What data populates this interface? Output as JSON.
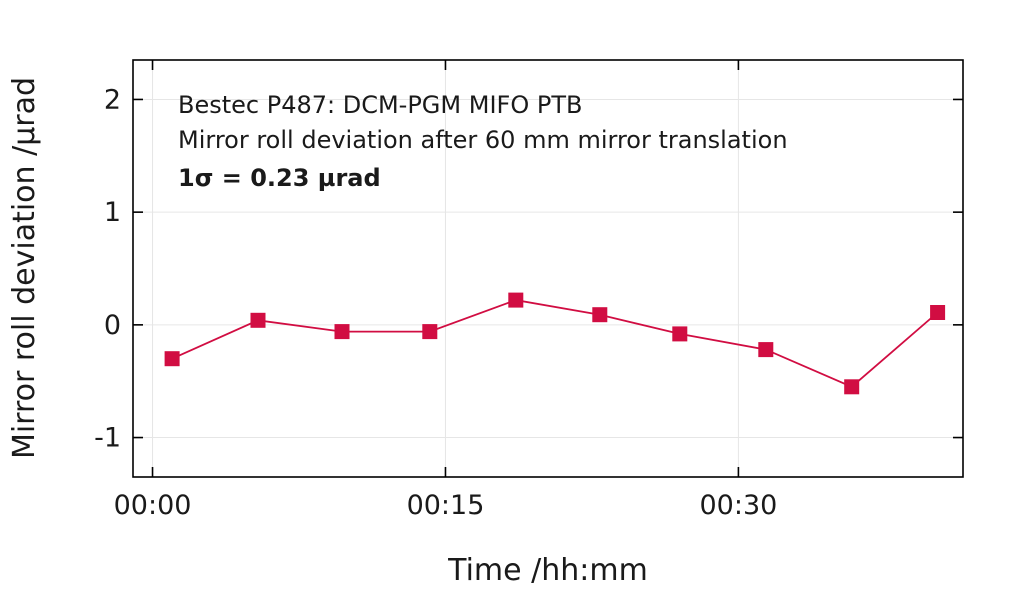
{
  "chart_data": {
    "type": "line",
    "title": "",
    "xlabel": "Time /hh:mm",
    "ylabel": "Mirror roll deviation /µrad",
    "annotations": [
      "Bestec P487: DCM-PGM MIFO PTB",
      "Mirror roll deviation after 60 mm mirror translation",
      "1σ = 0.23 µrad"
    ],
    "x_unit": "minutes",
    "xlim": [
      -1,
      41.5
    ],
    "ylim": [
      -1.35,
      2.35
    ],
    "x_ticks": [
      {
        "value": 0,
        "label": "00:00"
      },
      {
        "value": 15,
        "label": "00:15"
      },
      {
        "value": 30,
        "label": "00:30"
      }
    ],
    "y_ticks": [
      {
        "value": -1,
        "label": "-1"
      },
      {
        "value": 0,
        "label": "0"
      },
      {
        "value": 1,
        "label": "1"
      },
      {
        "value": 2,
        "label": "2"
      }
    ],
    "grid": true,
    "series": [
      {
        "color": "#d10d42",
        "marker": "square",
        "x": [
          1.0,
          5.4,
          9.7,
          14.2,
          18.6,
          22.9,
          27.0,
          31.4,
          35.8,
          40.2
        ],
        "y": [
          -0.3,
          0.04,
          -0.06,
          -0.06,
          0.22,
          0.09,
          -0.08,
          -0.22,
          -0.55,
          0.11
        ]
      }
    ]
  }
}
